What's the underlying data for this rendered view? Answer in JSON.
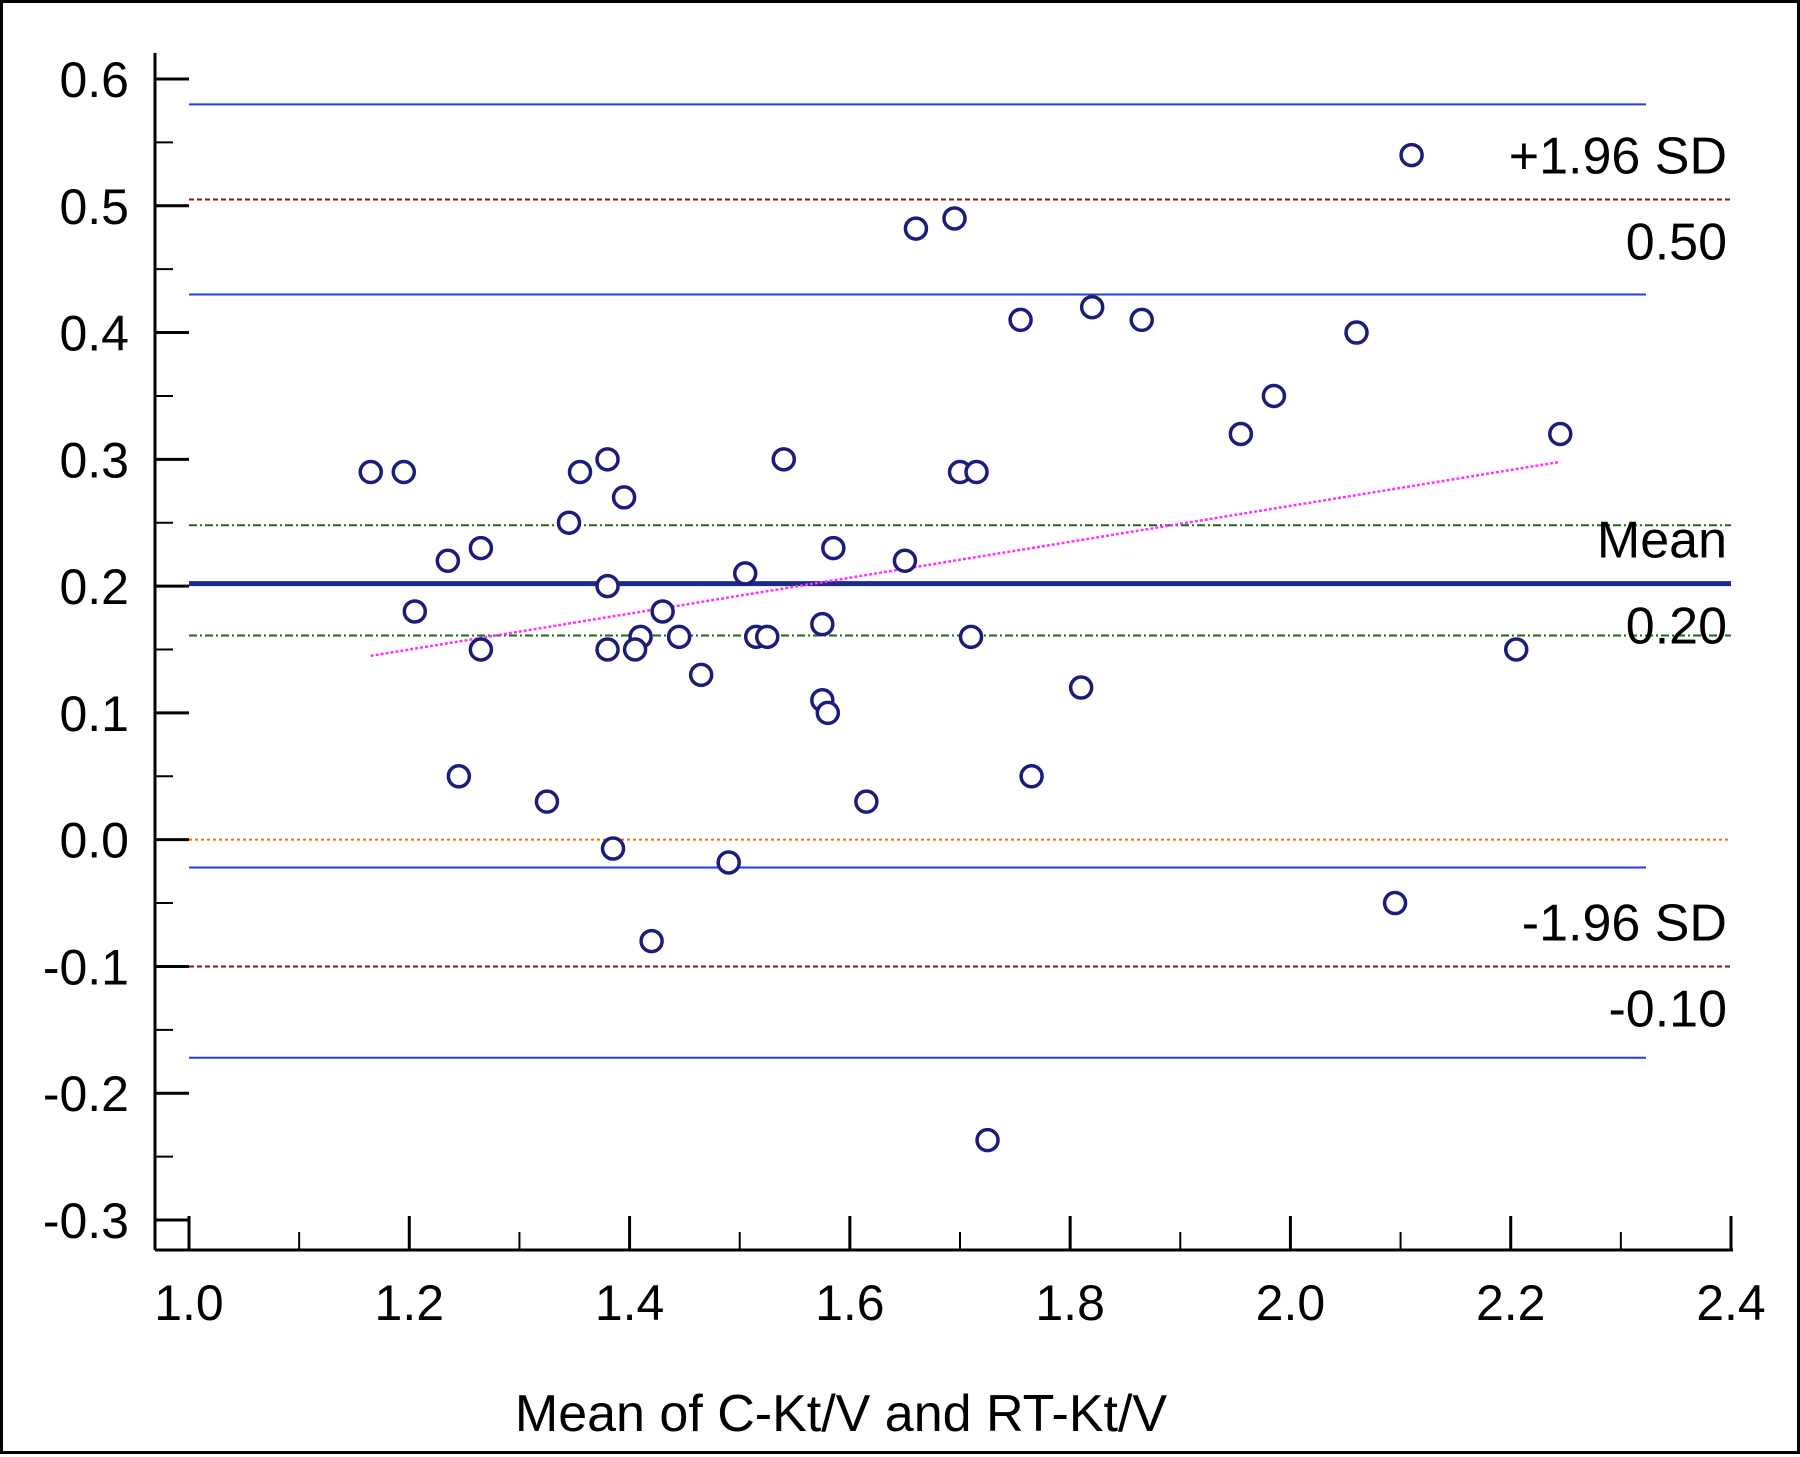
{
  "chart_data": {
    "type": "scatter",
    "title": "",
    "xlabel": "Mean of C-Kt/V and RT-Kt/V",
    "ylabel": "",
    "xlim": [
      1.0,
      2.4
    ],
    "ylim": [
      -0.3,
      0.6
    ],
    "x_ticks": [
      "1.0",
      "1.2",
      "1.4",
      "1.6",
      "1.8",
      "2.0",
      "2.2",
      "2.4"
    ],
    "y_ticks": [
      "0.6",
      "0.5",
      "0.4",
      "0.3",
      "0.2",
      "0.1",
      "0.0",
      "-0.1",
      "-0.2",
      "-0.3"
    ],
    "grid": false,
    "reference_lines": {
      "upper_loa": {
        "value": 0.505,
        "label_top": "+1.96 SD",
        "label_bottom": "0.50",
        "color": "#7b1a1a",
        "ci": [
          0.43,
          0.58
        ]
      },
      "mean": {
        "value": 0.202,
        "label_top": "Mean",
        "label_bottom": "0.20",
        "color": "#1c2a8c",
        "ci": [
          0.161,
          0.248
        ]
      },
      "zero": {
        "value": 0.0,
        "color": "#ff6600"
      },
      "lower_loa": {
        "value": -0.1,
        "label_top": "-1.96 SD",
        "label_bottom": "-0.10",
        "color": "#7b1a1a",
        "ci": [
          -0.022,
          -0.172
        ]
      },
      "ci_line_color": "#1f3fe0",
      "mean_ci_color": "#1a6b1a"
    },
    "regression_line": {
      "x": [
        1.165,
        2.245
      ],
      "y": [
        0.145,
        0.298
      ],
      "color": "#ff33ff"
    },
    "points": {
      "x": [
        2.11,
        1.695,
        1.66,
        1.82,
        1.755,
        1.865,
        2.06,
        1.985,
        1.955,
        2.245,
        1.165,
        1.195,
        1.355,
        1.38,
        1.54,
        1.7,
        1.715,
        1.395,
        1.345,
        1.265,
        1.235,
        1.585,
        1.65,
        1.505,
        1.38,
        1.205,
        1.43,
        1.575,
        1.41,
        1.445,
        1.515,
        1.525,
        1.71,
        1.265,
        1.38,
        1.405,
        2.205,
        1.465,
        1.81,
        1.575,
        1.58,
        1.245,
        1.765,
        1.325,
        1.615,
        1.385,
        1.49,
        2.095,
        1.42,
        1.725
      ],
      "y": [
        0.54,
        0.49,
        0.482,
        0.42,
        0.41,
        0.41,
        0.4,
        0.35,
        0.32,
        0.32,
        0.29,
        0.29,
        0.29,
        0.3,
        0.3,
        0.29,
        0.29,
        0.27,
        0.25,
        0.23,
        0.22,
        0.23,
        0.22,
        0.21,
        0.2,
        0.18,
        0.18,
        0.17,
        0.16,
        0.16,
        0.16,
        0.16,
        0.16,
        0.15,
        0.15,
        0.15,
        0.15,
        0.13,
        0.12,
        0.11,
        0.1,
        0.05,
        0.05,
        0.03,
        0.03,
        -0.007,
        -0.018,
        -0.05,
        -0.08,
        -0.237
      ],
      "color": "#1c1c7a"
    }
  }
}
